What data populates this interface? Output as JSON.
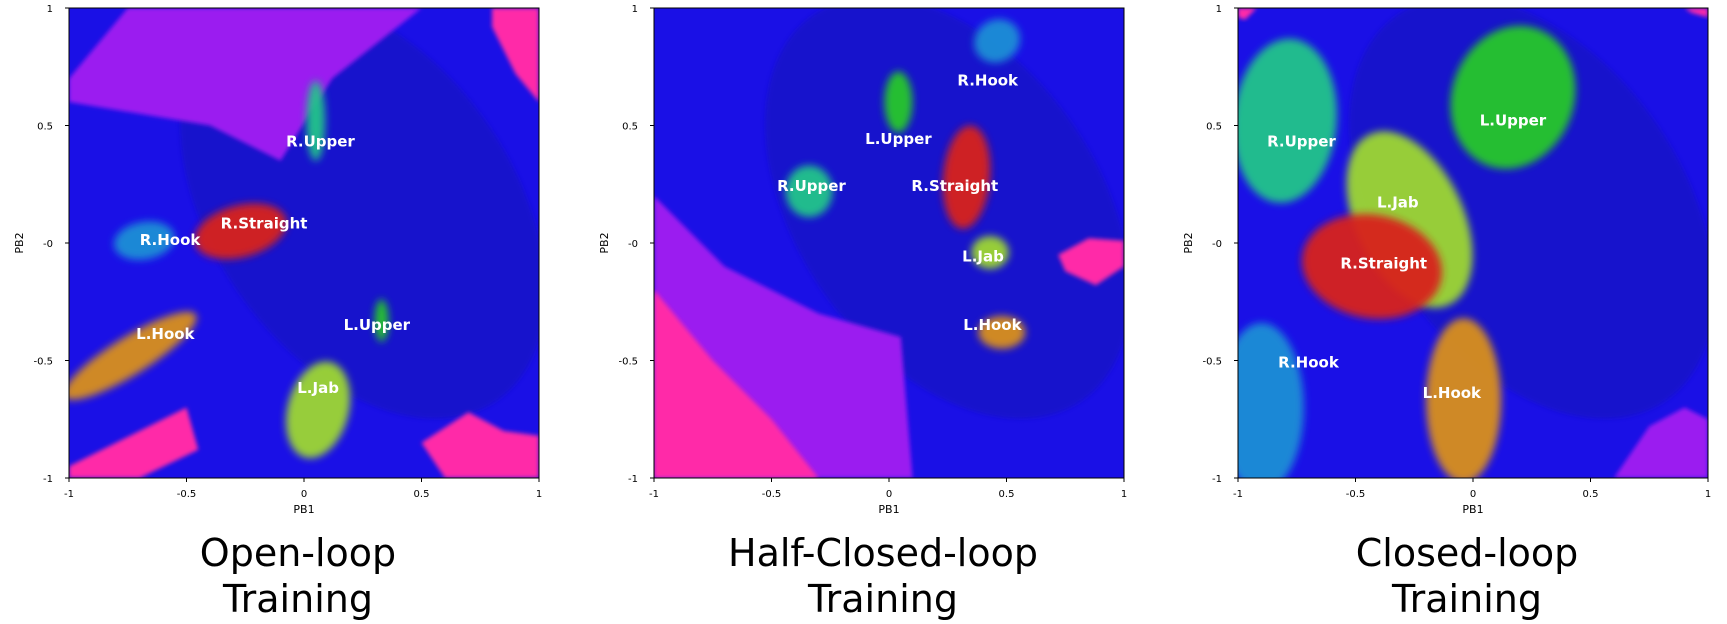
{
  "colors": {
    "background_blue": "#1a10e6",
    "dark_blue": "#1212b8",
    "purple": "#9b1af0",
    "pink": "#ff2ba8",
    "R.Hook": "#1f8fd6",
    "R.Upper": "#20c58a",
    "R.Straight": "#d8201a",
    "L.Upper": "#26c82a",
    "L.Jab": "#9ed830",
    "L.Hook": "#d9901e"
  },
  "panels": [
    {
      "caption": [
        "Open-loop",
        "Training"
      ]
    },
    {
      "caption": [
        "Half-Closed-loop",
        "Training"
      ]
    },
    {
      "caption": [
        "Closed-loop",
        "Training"
      ]
    }
  ],
  "chart_data": [
    {
      "type": "heatmap",
      "title": "Open-loop Training",
      "xlabel": "PB1",
      "ylabel": "PB2",
      "xlim": [
        -1,
        1
      ],
      "ylim": [
        -1,
        1
      ],
      "x_ticks": [
        "-1",
        "-0.5",
        "0",
        "0.5",
        "1"
      ],
      "y_ticks": [
        "1",
        "0.5",
        "-0",
        "-0.5",
        "-1"
      ],
      "background_regions": [
        {
          "color": "purple",
          "points": [
            [
              -1,
              0.7
            ],
            [
              -0.75,
              1
            ],
            [
              0.5,
              1
            ],
            [
              0.12,
              0.7
            ],
            [
              -0.1,
              0.35
            ],
            [
              -0.4,
              0.5
            ],
            [
              -1,
              0.6
            ]
          ]
        },
        {
          "color": "pink",
          "points": [
            [
              0.8,
              1
            ],
            [
              1,
              1
            ],
            [
              1,
              0.6
            ],
            [
              0.9,
              0.72
            ],
            [
              0.8,
              0.92
            ]
          ]
        },
        {
          "color": "pink",
          "points": [
            [
              -1,
              -0.95
            ],
            [
              -0.7,
              -0.8
            ],
            [
              -0.5,
              -0.7
            ],
            [
              -0.45,
              -0.88
            ],
            [
              -0.7,
              -1
            ],
            [
              -1,
              -1
            ]
          ]
        },
        {
          "color": "pink",
          "points": [
            [
              0.5,
              -0.85
            ],
            [
              0.7,
              -0.72
            ],
            [
              0.85,
              -0.8
            ],
            [
              1,
              -0.82
            ],
            [
              1,
              -1
            ],
            [
              0.6,
              -1
            ]
          ]
        }
      ],
      "clusters": [
        {
          "label": "R.Upper",
          "color": "R.Upper",
          "x": 0.05,
          "y": 0.52,
          "rx": 0.04,
          "ry": 0.17,
          "angle": 0,
          "label_x": 0.07,
          "label_y": 0.43
        },
        {
          "label": "R.Hook",
          "color": "R.Hook",
          "x": -0.68,
          "y": 0.01,
          "rx": 0.13,
          "ry": 0.08,
          "angle": -10,
          "label_x": -0.57,
          "label_y": 0.01
        },
        {
          "label": "R.Straight",
          "color": "R.Straight",
          "x": -0.27,
          "y": 0.05,
          "rx": 0.2,
          "ry": 0.11,
          "angle": -15,
          "label_x": -0.17,
          "label_y": 0.08
        },
        {
          "label": "L.Hook",
          "color": "L.Hook",
          "x": -0.74,
          "y": -0.48,
          "rx": 0.33,
          "ry": 0.08,
          "angle": -32,
          "label_x": -0.59,
          "label_y": -0.39
        },
        {
          "label": "L.Upper",
          "color": "L.Upper",
          "x": 0.33,
          "y": -0.33,
          "rx": 0.03,
          "ry": 0.09,
          "angle": 0,
          "label_x": 0.31,
          "label_y": -0.35
        },
        {
          "label": "L.Jab",
          "color": "L.Jab",
          "x": 0.06,
          "y": -0.71,
          "rx": 0.13,
          "ry": 0.21,
          "angle": 15,
          "label_x": 0.06,
          "label_y": -0.62
        }
      ]
    },
    {
      "type": "heatmap",
      "title": "Half-Closed-loop Training",
      "xlabel": "PB1",
      "ylabel": "PB2",
      "xlim": [
        -1,
        1
      ],
      "ylim": [
        -1,
        1
      ],
      "x_ticks": [
        "-1",
        "-0.5",
        "0",
        "0.5",
        "1"
      ],
      "y_ticks": [
        "1",
        "0.5",
        "-0",
        "-0.5",
        "-1"
      ],
      "background_regions": [
        {
          "color": "purple",
          "points": [
            [
              -1,
              0.2
            ],
            [
              -0.7,
              -0.1
            ],
            [
              -0.3,
              -0.3
            ],
            [
              0.05,
              -0.4
            ],
            [
              0.1,
              -1
            ],
            [
              -1,
              -1
            ]
          ]
        },
        {
          "color": "pink",
          "points": [
            [
              -1,
              -0.2
            ],
            [
              -0.75,
              -0.5
            ],
            [
              -0.5,
              -0.75
            ],
            [
              -0.3,
              -1
            ],
            [
              -1,
              -1
            ]
          ]
        },
        {
          "color": "pink",
          "points": [
            [
              0.72,
              -0.05
            ],
            [
              0.85,
              0.02
            ],
            [
              1,
              0.01
            ],
            [
              1,
              -0.1
            ],
            [
              0.88,
              -0.18
            ],
            [
              0.75,
              -0.12
            ]
          ]
        }
      ],
      "clusters": [
        {
          "label": "R.Hook",
          "color": "R.Hook",
          "x": 0.46,
          "y": 0.86,
          "rx": 0.1,
          "ry": 0.09,
          "angle": -30,
          "label_x": 0.42,
          "label_y": 0.69
        },
        {
          "label": "L.Upper",
          "color": "L.Upper",
          "x": 0.04,
          "y": 0.6,
          "rx": 0.06,
          "ry": 0.13,
          "angle": 0,
          "label_x": 0.04,
          "label_y": 0.44
        },
        {
          "label": "R.Straight",
          "color": "R.Straight",
          "x": 0.33,
          "y": 0.28,
          "rx": 0.1,
          "ry": 0.22,
          "angle": 5,
          "label_x": 0.28,
          "label_y": 0.24
        },
        {
          "label": "R.Upper",
          "color": "R.Upper",
          "x": -0.34,
          "y": 0.22,
          "rx": 0.1,
          "ry": 0.11,
          "angle": 0,
          "label_x": -0.33,
          "label_y": 0.24
        },
        {
          "label": "L.Jab",
          "color": "L.Jab",
          "x": 0.43,
          "y": -0.04,
          "rx": 0.08,
          "ry": 0.07,
          "angle": 0,
          "label_x": 0.4,
          "label_y": -0.06
        },
        {
          "label": "L.Hook",
          "color": "L.Hook",
          "x": 0.48,
          "y": -0.38,
          "rx": 0.1,
          "ry": 0.07,
          "angle": 0,
          "label_x": 0.44,
          "label_y": -0.35
        }
      ]
    },
    {
      "type": "heatmap",
      "title": "Closed-loop Training",
      "xlabel": "PB1",
      "ylabel": "PB2",
      "xlim": [
        -1,
        1
      ],
      "ylim": [
        -1,
        1
      ],
      "x_ticks": [
        "-1",
        "-0.5",
        "0",
        "0.5",
        "1"
      ],
      "y_ticks": [
        "1",
        "0.5",
        "-0",
        "-0.5",
        "-1"
      ],
      "background_regions": [
        {
          "color": "pink",
          "points": [
            [
              -1,
              1
            ],
            [
              -0.92,
              1
            ],
            [
              -0.97,
              0.95
            ],
            [
              -1,
              0.96
            ]
          ]
        },
        {
          "color": "pink",
          "points": [
            [
              0.9,
              1
            ],
            [
              1,
              1
            ],
            [
              1,
              0.96
            ],
            [
              0.93,
              0.98
            ]
          ]
        },
        {
          "color": "purple",
          "points": [
            [
              0.6,
              -1
            ],
            [
              0.75,
              -0.78
            ],
            [
              0.9,
              -0.7
            ],
            [
              1,
              -0.75
            ],
            [
              1,
              -1
            ]
          ]
        }
      ],
      "clusters": [
        {
          "label": "L.Upper",
          "color": "L.Upper",
          "x": 0.17,
          "y": 0.62,
          "rx": 0.26,
          "ry": 0.31,
          "angle": 20,
          "label_x": 0.17,
          "label_y": 0.52
        },
        {
          "label": "R.Upper",
          "color": "R.Upper",
          "x": -0.8,
          "y": 0.52,
          "rx": 0.22,
          "ry": 0.35,
          "angle": 5,
          "label_x": -0.73,
          "label_y": 0.43
        },
        {
          "label": "L.Jab",
          "color": "L.Jab",
          "x": -0.27,
          "y": 0.1,
          "rx": 0.23,
          "ry": 0.4,
          "angle": -25,
          "label_x": -0.32,
          "label_y": 0.17
        },
        {
          "label": "R.Straight",
          "color": "R.Straight",
          "x": -0.43,
          "y": -0.1,
          "rx": 0.3,
          "ry": 0.22,
          "angle": 10,
          "label_x": -0.38,
          "label_y": -0.09
        },
        {
          "label": "R.Hook",
          "color": "R.Hook",
          "x": -0.9,
          "y": -0.7,
          "rx": 0.18,
          "ry": 0.36,
          "angle": 0,
          "label_x": -0.7,
          "label_y": -0.51
        },
        {
          "label": "L.Hook",
          "color": "L.Hook",
          "x": -0.04,
          "y": -0.67,
          "rx": 0.16,
          "ry": 0.35,
          "angle": 0,
          "label_x": -0.09,
          "label_y": -0.64
        }
      ]
    }
  ]
}
